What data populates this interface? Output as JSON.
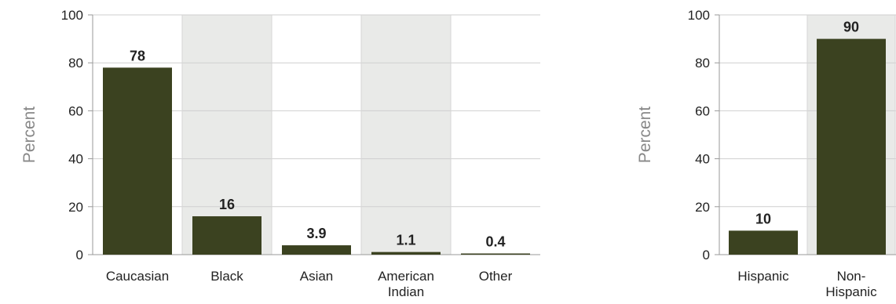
{
  "chart_data": [
    {
      "type": "bar",
      "title": "",
      "xlabel": "",
      "ylabel": "Percent",
      "ylim": [
        0,
        100
      ],
      "yticks": [
        0,
        20,
        40,
        60,
        80,
        100
      ],
      "grid": true,
      "categories": [
        "Caucasian",
        "Black",
        "Asian",
        "American Indian",
        "Other"
      ],
      "category_lines": [
        [
          "Caucasian"
        ],
        [
          "Black"
        ],
        [
          "Asian"
        ],
        [
          "American",
          "Indian"
        ],
        [
          "Other"
        ]
      ],
      "values": [
        78,
        16,
        3.9,
        1.1,
        0.4
      ],
      "value_labels": [
        "78",
        "16",
        "3.9",
        "1.1",
        "0.4"
      ],
      "bar_color": "#3b4220",
      "alt_band_color": "#e9eae8"
    },
    {
      "type": "bar",
      "title": "",
      "xlabel": "",
      "ylabel": "Percent",
      "ylim": [
        0,
        100
      ],
      "yticks": [
        0,
        20,
        40,
        60,
        80,
        100
      ],
      "grid": true,
      "categories": [
        "Hispanic",
        "Non-Hispanic"
      ],
      "category_lines": [
        [
          "Hispanic"
        ],
        [
          "Non-",
          "Hispanic"
        ]
      ],
      "values": [
        10,
        90
      ],
      "value_labels": [
        "10",
        "90"
      ],
      "bar_color": "#3b4220",
      "alt_band_color": "#e9eae8"
    }
  ]
}
